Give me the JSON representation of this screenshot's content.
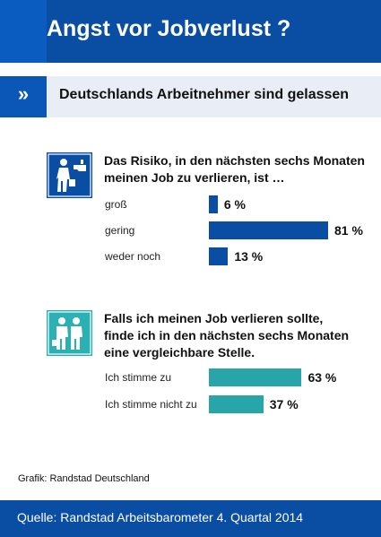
{
  "header": {
    "title": "Angst vor Jobverlust ?"
  },
  "subheader": {
    "marker": "»",
    "text": "Deutschlands Arbeitnehmer sind gelassen"
  },
  "section1": {
    "question_line1": "Das Risiko, in den nächsten sechs Monaten",
    "question_line2": "meinen Job zu verlieren, ist …",
    "icon": "person-pointed-at-icon"
  },
  "section2": {
    "question_line1": "Falls ich meinen Job verlieren sollte,",
    "question_line2": "finde ich in den nächsten sechs Monaten",
    "question_line3": "eine vergleichbare Stelle.",
    "icon": "two-workers-icon"
  },
  "credit": "Grafik: Randstad Deutschland",
  "footer": {
    "source": "Quelle: Randstad Arbeitsbarometer 4. Quartal 2014"
  },
  "colors": {
    "header_blue": "#0a4ea3",
    "bar_blue": "#0a4ea3",
    "bar_teal": "#28a5a8",
    "icon_teal": "#2bb0b3"
  },
  "chart_data": [
    {
      "type": "bar",
      "orientation": "horizontal",
      "categories": [
        "groß",
        "gering",
        "weder noch"
      ],
      "values": [
        6,
        81,
        13
      ],
      "value_labels": [
        "6 %",
        "81 %",
        "13 %"
      ],
      "unit": "%",
      "xlim": [
        0,
        81
      ]
    },
    {
      "type": "bar",
      "orientation": "horizontal",
      "categories": [
        "Ich stimme zu",
        "Ich stimme nicht zu"
      ],
      "values": [
        63,
        37
      ],
      "value_labels": [
        "63 %",
        "37 %"
      ],
      "unit": "%",
      "xlim": [
        0,
        81
      ]
    }
  ]
}
